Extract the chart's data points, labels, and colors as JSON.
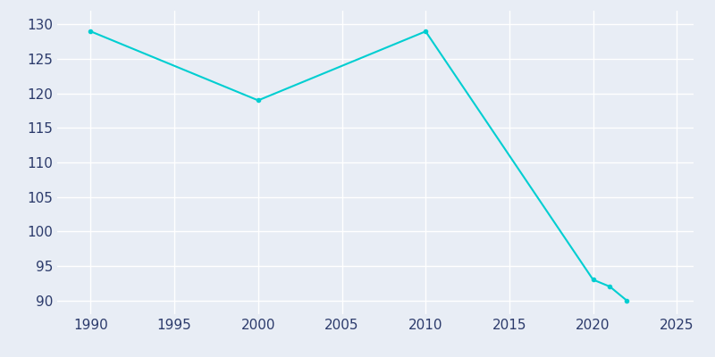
{
  "years": [
    1990,
    2000,
    2010,
    2020,
    2021,
    2022
  ],
  "population": [
    129,
    119,
    129,
    93,
    92,
    90
  ],
  "line_color": "#00CED1",
  "background_color": "#E8EDF5",
  "grid_color": "#FFFFFF",
  "tick_label_color": "#2B3A6B",
  "xlabel": "",
  "ylabel": "",
  "xlim": [
    1988,
    2026
  ],
  "ylim": [
    88,
    132
  ],
  "yticks": [
    90,
    95,
    100,
    105,
    110,
    115,
    120,
    125,
    130
  ],
  "xticks": [
    1990,
    1995,
    2000,
    2005,
    2010,
    2015,
    2020,
    2025
  ],
  "line_width": 1.5
}
